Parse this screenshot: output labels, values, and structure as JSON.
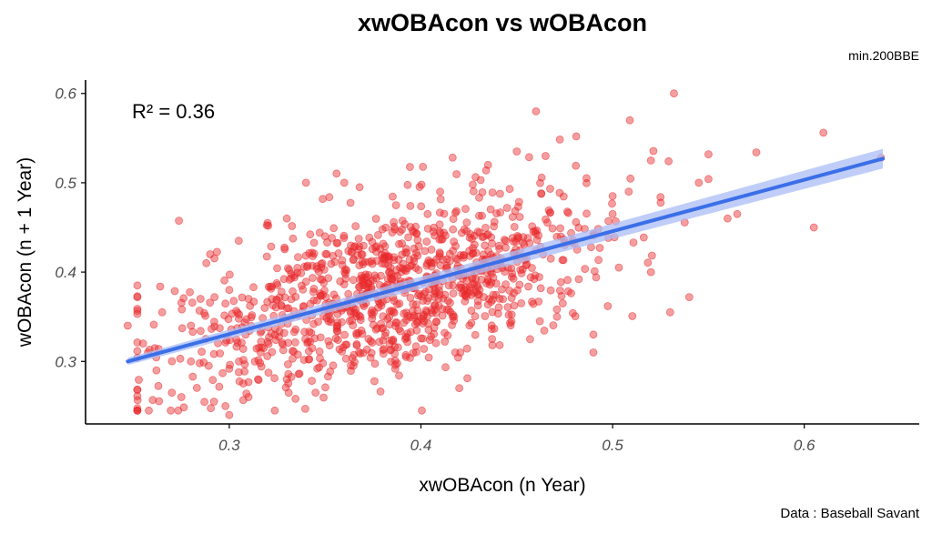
{
  "chart_data": {
    "type": "scatter",
    "title": "xwOBAcon vs wOBAcon",
    "subtitle": "min.200BBE",
    "xlabel": "xwOBAcon (n Year)",
    "ylabel": "wOBAcon (n + 1 Year)",
    "caption": "Data : Baseball Savant",
    "annotation": "R² = 0.36",
    "xlim": [
      0.225,
      0.66
    ],
    "ylim": [
      0.23,
      0.615
    ],
    "x_ticks": [
      "0.3",
      "0.4",
      "0.5",
      "0.6"
    ],
    "y_ticks": [
      "0.3",
      "0.4",
      "0.5",
      "0.6"
    ],
    "grid": false,
    "point_color": "#e8282b",
    "line_color": "#3b6fe8",
    "band_color": "#a9bcf5",
    "regression": {
      "x": [
        0.247,
        0.641
      ],
      "y": [
        0.3,
        0.527
      ],
      "ci_start": 0.004,
      "ci_end": 0.011
    },
    "points": {
      "x": [
        0.247,
        0.258,
        0.262,
        0.27,
        0.275,
        0.28,
        0.285,
        0.288,
        0.292,
        0.298,
        0.3,
        0.305,
        0.31,
        0.315,
        0.532,
        0.61,
        0.481,
        0.509,
        0.575,
        0.54,
        0.46,
        0.45,
        0.42,
        0.64,
        0.565,
        0.525,
        0.545,
        0.49,
        0.471,
        0.474,
        0.605,
        0.52,
        0.465,
        0.5,
        0.34,
        0.36,
        0.32,
        0.31,
        0.265,
        0.255,
        0.28,
        0.33,
        0.35,
        0.3,
        0.29,
        0.368,
        0.427,
        0.41,
        0.435,
        0.5,
        0.53,
        0.462,
        0.33,
        0.345,
        0.49,
        0.52,
        0.56
      ],
      "y": [
        0.34,
        0.245,
        0.29,
        0.265,
        0.26,
        0.34,
        0.37,
        0.41,
        0.255,
        0.25,
        0.24,
        0.3,
        0.26,
        0.28,
        0.6,
        0.556,
        0.552,
        0.57,
        0.534,
        0.372,
        0.58,
        0.535,
        0.27,
        0.528,
        0.465,
        0.484,
        0.5,
        0.31,
        0.35,
        0.365,
        0.45,
        0.4,
        0.53,
        0.485,
        0.5,
        0.5,
        0.455,
        0.37,
        0.355,
        0.32,
        0.3,
        0.46,
        0.44,
        0.38,
        0.42,
        0.495,
        0.498,
        0.49,
        0.52,
        0.465,
        0.355,
        0.345,
        0.28,
        0.265,
        0.33,
        0.525,
        0.46
      ]
    },
    "cloud": {
      "count": 1100,
      "x_mean": 0.385,
      "x_sd": 0.055,
      "slope": 0.58,
      "resid_sd": 0.04
    }
  }
}
